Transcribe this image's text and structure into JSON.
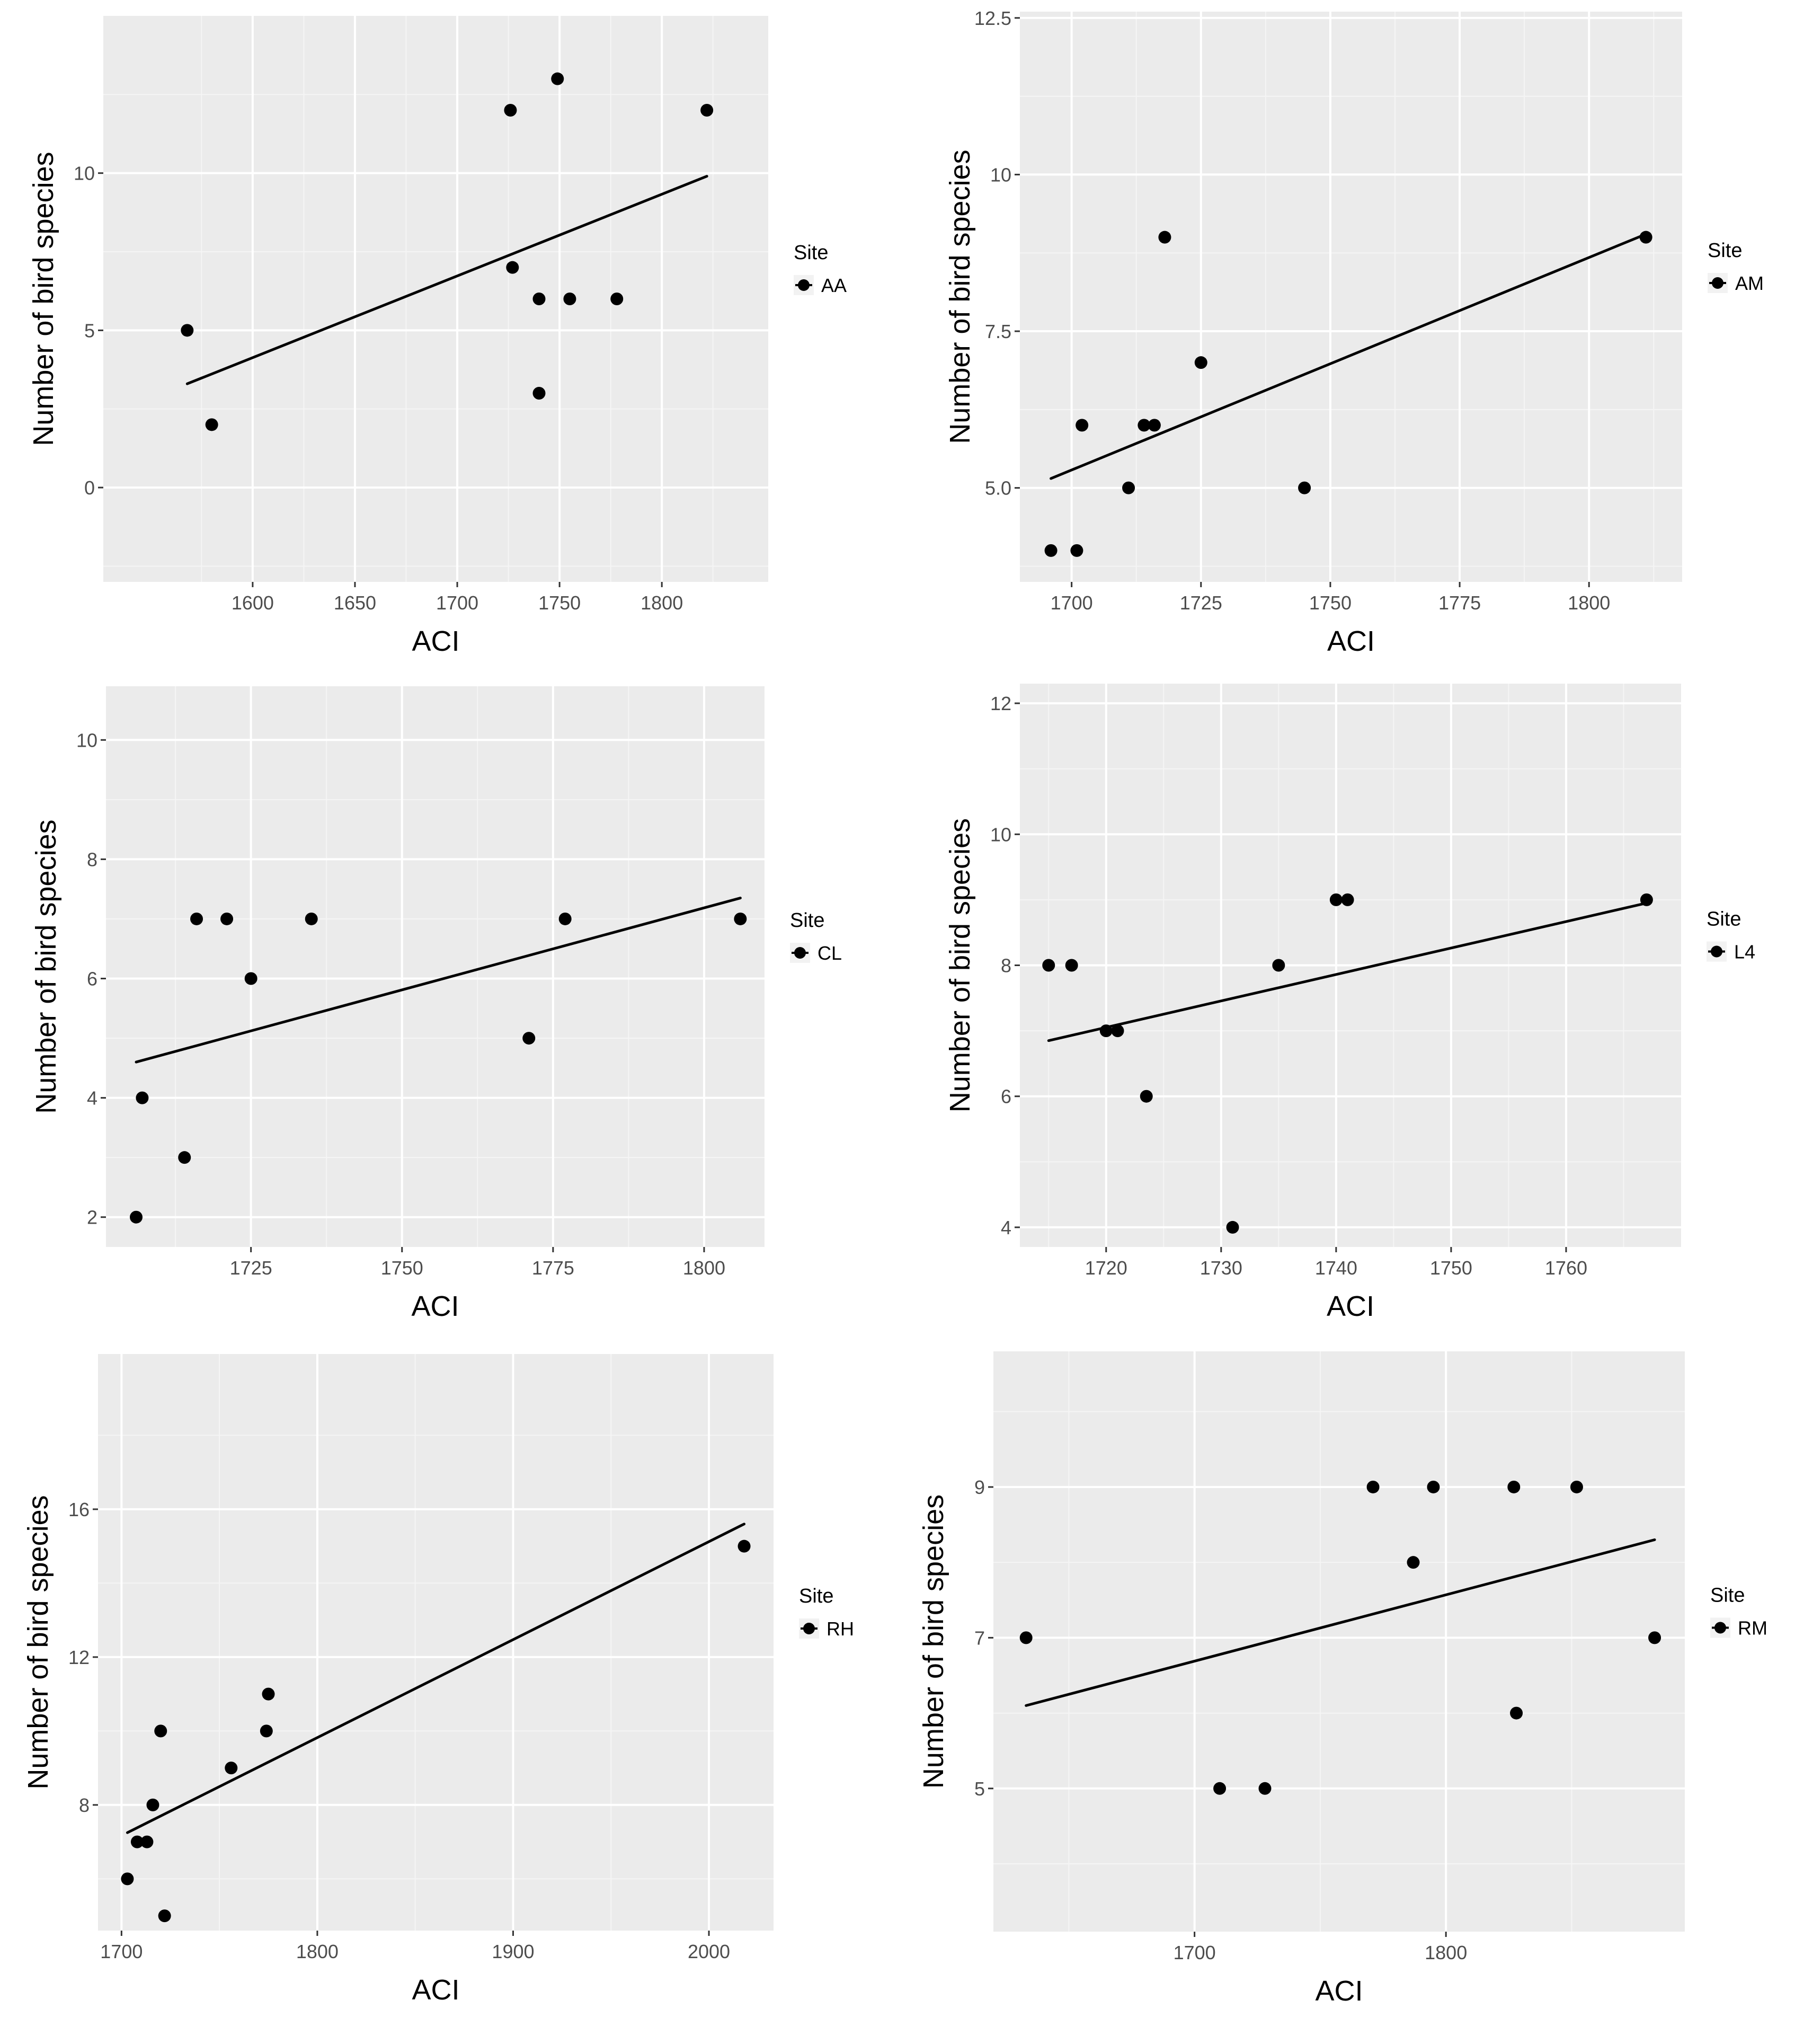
{
  "chart_data": [
    {
      "type": "scatter",
      "panel": "top-left",
      "xlabel": "ACI",
      "ylabel": "Number of bird species",
      "legend_title": "Site",
      "legend_label": "AA",
      "xlim": [
        1527,
        1852
      ],
      "ylim": [
        -3,
        15
      ],
      "xticks": [
        "1600",
        "1650",
        "1700",
        "1750",
        "1800"
      ],
      "yticks": [
        "0",
        "5",
        "10"
      ],
      "x": [
        1568,
        1580,
        1726,
        1727,
        1740,
        1740,
        1749,
        1755,
        1778,
        1822
      ],
      "y": [
        5,
        2,
        12,
        7,
        6,
        3,
        13,
        6,
        6,
        12
      ],
      "trend": {
        "x": [
          1568,
          1822
        ],
        "y": [
          3.3,
          9.9
        ]
      }
    },
    {
      "type": "scatter",
      "panel": "top-right",
      "xlabel": "ACI",
      "ylabel": "Number of bird species",
      "legend_title": "Site",
      "legend_label": "AM",
      "xlim": [
        1690,
        1818
      ],
      "ylim": [
        3.5,
        12.6
      ],
      "xticks": [
        "1700",
        "1725",
        "1750",
        "1775",
        "1800"
      ],
      "yticks": [
        "5.0",
        "7.5",
        "10",
        "12.5"
      ],
      "x": [
        1696,
        1701,
        1702,
        1711,
        1714,
        1716,
        1718,
        1725,
        1745,
        1811
      ],
      "y": [
        4,
        4,
        6,
        5,
        6,
        6,
        9,
        7,
        5,
        9
      ],
      "trend": {
        "x": [
          1696,
          1811
        ],
        "y": [
          5.15,
          9.05
        ]
      }
    },
    {
      "type": "scatter",
      "panel": "middle-left",
      "xlabel": "ACI",
      "ylabel": "Number of bird species",
      "legend_title": "Site",
      "legend_label": "CL",
      "xlim": [
        1701,
        1810
      ],
      "ylim": [
        1.5,
        10.9
      ],
      "xticks": [
        "1725",
        "1750",
        "1775",
        "1800"
      ],
      "yticks": [
        "2",
        "4",
        "6",
        "8",
        "10"
      ],
      "x": [
        1706,
        1707,
        1714,
        1716,
        1721,
        1725,
        1735,
        1771,
        1777,
        1806
      ],
      "y": [
        2,
        4,
        3,
        7,
        7,
        6,
        7,
        5,
        7,
        7
      ],
      "trend": {
        "x": [
          1706,
          1806
        ],
        "y": [
          4.6,
          7.35
        ]
      }
    },
    {
      "type": "scatter",
      "panel": "middle-right",
      "xlabel": "ACI",
      "ylabel": "Number of bird species",
      "legend_title": "Site",
      "legend_label": "L4",
      "xlim": [
        1712.5,
        1770
      ],
      "ylim": [
        3.7,
        12.3
      ],
      "xticks": [
        "1720",
        "1730",
        "1740",
        "1750",
        "1760"
      ],
      "yticks": [
        "4",
        "6",
        "8",
        "10",
        "12"
      ],
      "x": [
        1715,
        1717,
        1720,
        1721,
        1723.5,
        1731,
        1735,
        1740,
        1741,
        1767
      ],
      "y": [
        8,
        8,
        7,
        7,
        6,
        4,
        8,
        9,
        9,
        9
      ],
      "trend": {
        "x": [
          1715,
          1767
        ],
        "y": [
          6.85,
          8.95
        ]
      }
    },
    {
      "type": "scatter",
      "panel": "bottom-left",
      "xlabel": "ACI",
      "ylabel": "Number of bird species",
      "legend_title": "Site",
      "legend_label": "RH",
      "xlim": [
        1688,
        2033
      ],
      "ylim": [
        4.6,
        20.2
      ],
      "xticks": [
        "1700",
        "1800",
        "1900",
        "2000"
      ],
      "yticks": [
        "8",
        "12",
        "16"
      ],
      "x": [
        1703,
        1708,
        1713,
        1716,
        1720,
        1722,
        1756,
        1774,
        1775,
        2018
      ],
      "y": [
        6,
        7,
        7,
        8,
        10,
        5,
        9,
        10,
        11,
        15
      ],
      "trend": {
        "x": [
          1703,
          2018
        ],
        "y": [
          7.25,
          15.6
        ]
      }
    },
    {
      "type": "scatter",
      "panel": "bottom-right",
      "xlabel": "ACI",
      "ylabel": "Number of bird species",
      "legend_title": "Site",
      "legend_label": "RM",
      "xlim": [
        1620,
        1895
      ],
      "ylim": [
        3.1,
        10.8
      ],
      "xticks": [
        "1700",
        "1800"
      ],
      "yticks": [
        "5",
        "7",
        "9"
      ],
      "x": [
        1633,
        1710,
        1728,
        1771,
        1787,
        1795,
        1827,
        1828,
        1852,
        1883
      ],
      "y": [
        7,
        5,
        5,
        9,
        8,
        9,
        9,
        6,
        9,
        7
      ],
      "trend": {
        "x": [
          1633,
          1883
        ],
        "y": [
          6.1,
          8.3
        ]
      }
    }
  ]
}
